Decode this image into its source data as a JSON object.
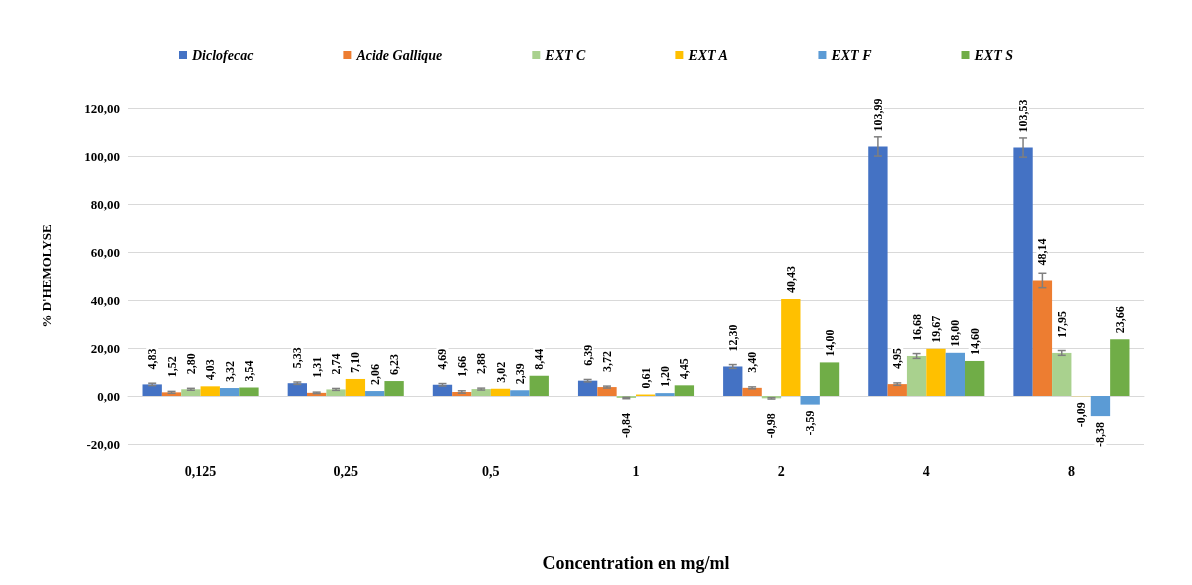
{
  "chart_data": {
    "type": "bar",
    "xlabel": "Concentration en mg/ml",
    "ylabel": "% D'HEMOLYSE",
    "categories": [
      "0,125",
      "0,25",
      "0,5",
      "1",
      "2",
      "4",
      "8"
    ],
    "series": [
      {
        "name": "Diclofecac",
        "color": "#4472c4",
        "values": [
          4.83,
          5.33,
          4.69,
          6.39,
          12.3,
          103.99,
          103.53
        ],
        "errors": [
          0.5,
          0.5,
          0.5,
          0.5,
          0.8,
          4,
          4
        ],
        "value_labels": [
          "4,83",
          "5,33",
          "4,69",
          "6,39",
          "12,30",
          "103,99",
          "103,53"
        ]
      },
      {
        "name": "Acide Gallique",
        "color": "#ed7d31",
        "values": [
          1.52,
          1.31,
          1.66,
          3.72,
          3.4,
          4.95,
          48.14
        ],
        "errors": [
          0.4,
          0.3,
          0.5,
          0.4,
          0.4,
          0.5,
          3
        ],
        "value_labels": [
          "1,52",
          "1,31",
          "1,66",
          "3,72",
          "3,40",
          "4,95",
          "48,14"
        ]
      },
      {
        "name": "EXT C",
        "color": "#a9d18e",
        "values": [
          2.8,
          2.74,
          2.88,
          -0.84,
          -0.98,
          16.68,
          17.95
        ],
        "errors": [
          0.4,
          0.4,
          0.4,
          0.3,
          0.3,
          1,
          1
        ],
        "value_labels": [
          "2,80",
          "2,74",
          "2,88",
          "-0,84",
          "-0,98",
          "16,68",
          "17,95"
        ]
      },
      {
        "name": "EXT A",
        "color": "#ffc000",
        "values": [
          4.03,
          7.1,
          3.02,
          0.61,
          40.43,
          19.67,
          -0.09
        ],
        "value_labels": [
          "4,03",
          "7,10",
          "3,02",
          "0,61",
          "40,43",
          "19,67",
          "-0,09"
        ]
      },
      {
        "name": "EXT F",
        "color": "#5b9bd5",
        "values": [
          3.32,
          2.06,
          2.39,
          1.2,
          -3.59,
          18.0,
          -8.38
        ],
        "value_labels": [
          "3,32",
          "2,06",
          "2,39",
          "1,20",
          "-3,59",
          "18,00",
          "-8,38"
        ]
      },
      {
        "name": "EXT S",
        "color": "#70ad47",
        "values": [
          3.54,
          6.23,
          8.44,
          4.45,
          14.0,
          14.6,
          23.66
        ],
        "value_labels": [
          "3,54",
          "6,23",
          "8,44",
          "4,45",
          "14,00",
          "14,60",
          "23,66"
        ]
      }
    ],
    "ylim": [
      -20,
      120
    ],
    "yticks": [
      {
        "value": -20,
        "label": "-20,00"
      },
      {
        "value": 0,
        "label": "0,00"
      },
      {
        "value": 20,
        "label": "20,00"
      },
      {
        "value": 40,
        "label": "40,00"
      },
      {
        "value": 60,
        "label": "60,00"
      },
      {
        "value": 80,
        "label": "80,00"
      },
      {
        "value": 100,
        "label": "100,00"
      },
      {
        "value": 120,
        "label": "120,00"
      }
    ],
    "grid": "y",
    "legend": "top"
  }
}
